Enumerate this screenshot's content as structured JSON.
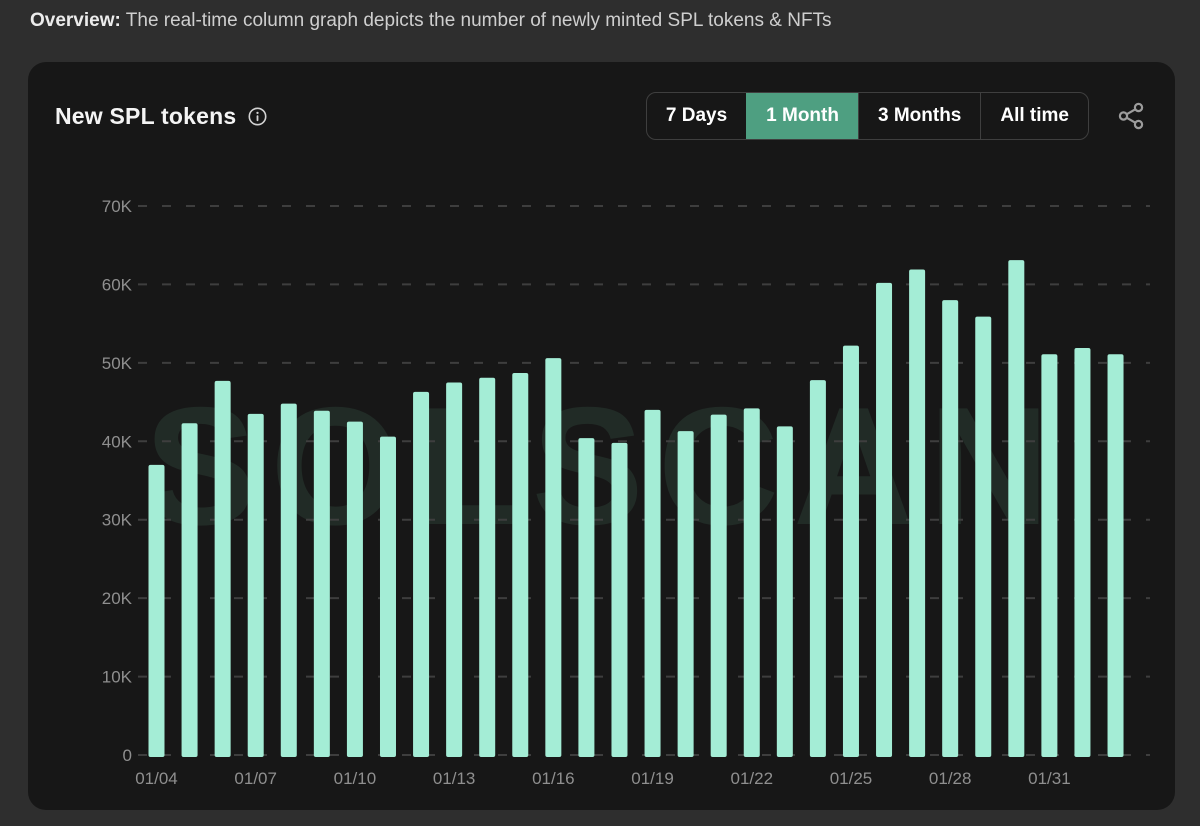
{
  "page": {
    "overview_label": "Overview:",
    "overview_text": "The real-time column graph depicts the number of newly minted SPL tokens & NFTs"
  },
  "card": {
    "title": "New SPL tokens",
    "range_buttons": [
      {
        "label": "7 Days",
        "active": false
      },
      {
        "label": "1 Month",
        "active": true
      },
      {
        "label": "3 Months",
        "active": false
      },
      {
        "label": "All time",
        "active": false
      }
    ],
    "icons": {
      "info": "info-icon",
      "share": "share-icon"
    }
  },
  "colors": {
    "page_background": "#2e2e2e",
    "card_background": "#171717",
    "bar": "#a4edd6",
    "active_button": "#4e9f81",
    "button_border": "#3f3f3f",
    "gridline": "#3e3e3e",
    "axis_text": "#8f8f8f",
    "watermark": "#212b26",
    "icon_gray": "#9c9c9c"
  },
  "chart_data": {
    "type": "bar",
    "title": "New SPL tokens",
    "x": [
      "01/04",
      "01/05",
      "01/06",
      "01/07",
      "01/08",
      "01/09",
      "01/10",
      "01/11",
      "01/12",
      "01/13",
      "01/14",
      "01/15",
      "01/16",
      "01/17",
      "01/18",
      "01/19",
      "01/20",
      "01/21",
      "01/22",
      "01/23",
      "01/24",
      "01/25",
      "01/26",
      "01/27",
      "01/28",
      "01/29",
      "01/30",
      "01/31",
      "02/01",
      "02/02"
    ],
    "values": [
      37000,
      42300,
      47700,
      43500,
      44800,
      43900,
      42500,
      40600,
      46300,
      47500,
      48100,
      48700,
      50600,
      40400,
      39800,
      44000,
      41300,
      43400,
      44200,
      41900,
      47800,
      52200,
      60200,
      61900,
      58000,
      55900,
      63100,
      51100,
      51900,
      51100
    ],
    "x_tick_labels": [
      "01/04",
      "01/07",
      "01/10",
      "01/13",
      "01/16",
      "01/19",
      "01/22",
      "01/25",
      "01/28",
      "01/31"
    ],
    "x_tick_every": 3,
    "y_ticks": [
      "0",
      "10K",
      "20K",
      "30K",
      "40K",
      "50K",
      "60K",
      "70K"
    ],
    "ylim": [
      0,
      70000
    ],
    "xlabel": "",
    "ylabel": "",
    "grid": "dashed-horizontal",
    "legend": "none",
    "watermark": "SOLSCAN"
  }
}
